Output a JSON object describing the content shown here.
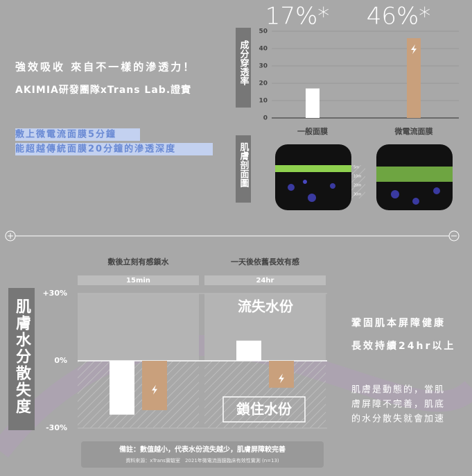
{
  "intro": {
    "headline": "強效吸收 來自不一樣的滲透力！",
    "subline": "AKIMIA研發團隊xTrans Lab.證實",
    "highlight": [
      "敷上微電流面膜5分鐘",
      "能超越傳統面膜20分鐘的滲透深度"
    ]
  },
  "chart_data": [
    {
      "type": "bar",
      "y_label": "成分穿透率",
      "categories": [
        "一般面膜",
        "微電流面膜"
      ],
      "values": [
        17,
        46
      ],
      "value_labels": [
        "17%*",
        "46%*"
      ],
      "colors": [
        "#ffffff",
        "#c9a07c"
      ],
      "ylim": [
        0,
        50
      ],
      "yticks": [
        0,
        10,
        20,
        30,
        40,
        50
      ],
      "grid": true
    },
    {
      "type": "bar",
      "y_label": "肌膚水分散失度",
      "categories": [
        "敷後立刻有感鎖水",
        "一天後依舊長效有感"
      ],
      "category_periods": [
        "15min",
        "24hr"
      ],
      "series": [
        {
          "color": "#ffffff",
          "values": [
            -24,
            9
          ]
        },
        {
          "color": "#c9a07c",
          "values": [
            -22,
            -12
          ]
        }
      ],
      "ylim": [
        -30,
        30
      ],
      "yticks": [
        {
          "value": 30,
          "label": "+30%"
        },
        {
          "value": 0,
          "label": "0%"
        },
        {
          "value": -30,
          "label": "-30%"
        }
      ],
      "annotations": [
        "流失水份",
        "鎖住水份"
      ]
    }
  ],
  "skin_section": {
    "title": "肌膚剖面圖",
    "scale": [
      "5m",
      "10m",
      "20m",
      "30m"
    ]
  },
  "claims": {
    "heading": [
      "鞏固肌本屏障健康",
      "長效持續24hr以上"
    ],
    "body": [
      "肌膚是動態的，當肌",
      "膚屏障不完善，肌底",
      "的水分散失就會加速"
    ]
  },
  "notes": {
    "remark": "備註：數值越小，代表水份流失越少，肌膚屏障較完善",
    "source": "資料來源：xTrans實驗室　2021年微電流面膜臨床有效性實測 (n=13)"
  }
}
